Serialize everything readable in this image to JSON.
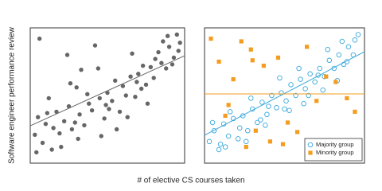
{
  "xlabel": "# of elective CS courses taken",
  "ylabel": "Software engineer performance review",
  "chart_data": [
    {
      "type": "scatter",
      "xlim": [
        0,
        10
      ],
      "ylim": [
        0,
        10
      ],
      "series": [
        {
          "color": "#666666",
          "marker": "dot",
          "x": [
            0.3,
            0.5,
            0.8,
            1.0,
            1.2,
            1.5,
            1.7,
            2.0,
            2.2,
            2.5,
            2.7,
            3.0,
            3.2,
            3.5,
            3.8,
            4.0,
            4.2,
            4.5,
            4.8,
            5.0,
            5.3,
            5.5,
            5.8,
            6.0,
            6.2,
            6.5,
            6.8,
            7.0,
            7.3,
            7.5,
            7.8,
            8.0,
            8.3,
            8.5,
            8.8,
            9.0,
            9.3,
            9.5,
            9.7,
            0.6,
            1.4,
            2.4,
            3.3,
            4.4,
            5.6,
            6.6,
            7.6,
            8.6,
            9.6,
            2.9,
            5.1,
            3.7,
            1.1,
            6.9,
            8.1,
            0.4,
            1.9,
            3.1,
            4.6,
            6.3,
            7.2,
            8.9,
            2.6,
            4.9,
            9.2
          ],
          "y": [
            2.1,
            3.4,
            1.5,
            2.9,
            4.8,
            2.6,
            3.8,
            1.2,
            3.1,
            4.2,
            2.5,
            5.6,
            3.6,
            2.8,
            4.4,
            3.9,
            8.7,
            4.8,
            3.3,
            5.2,
            4.6,
            6.1,
            3.8,
            5.7,
            5.0,
            6.4,
            4.9,
            6.6,
            7.2,
            5.8,
            7.1,
            6.3,
            8.2,
            7.4,
            7.0,
            8.6,
            7.8,
            9.5,
            8.9,
            9.2,
            1.0,
            8.0,
            6.9,
            7.0,
            2.5,
            8.1,
            4.4,
            9.0,
            8.3,
            3.0,
            4.0,
            5.1,
            3.7,
            6.0,
            7.7,
            0.8,
            2.2,
            1.8,
            2.0,
            3.4,
            5.5,
            9.4,
            5.9,
            4.3,
            7.3
          ]
        }
      ],
      "lines": [
        {
          "color": "#666666",
          "x": [
            0,
            10
          ],
          "y": [
            2.76,
            7.94
          ]
        }
      ]
    },
    {
      "type": "scatter",
      "xlim": [
        0,
        10
      ],
      "ylim": [
        0,
        10
      ],
      "legend": "lower right",
      "series": [
        {
          "name": "Majority group",
          "color": "#3aa8dc",
          "marker": "open-circle",
          "x": [
            0.3,
            0.6,
            0.9,
            1.2,
            1.5,
            1.8,
            2.1,
            2.4,
            2.7,
            3.0,
            3.3,
            3.6,
            3.9,
            4.2,
            4.5,
            4.8,
            5.1,
            5.4,
            5.7,
            6.0,
            6.3,
            6.6,
            6.9,
            7.2,
            7.5,
            7.8,
            8.1,
            8.4,
            8.7,
            9.0,
            9.3,
            9.6,
            0.5,
            1.0,
            1.6,
            2.2,
            2.9,
            3.5,
            4.0,
            4.7,
            5.3,
            5.9,
            6.5,
            7.1,
            7.7,
            8.3,
            8.9,
            9.4,
            1.3,
            2.6,
            3.8,
            5.0,
            6.2,
            7.4,
            8.6
          ],
          "y": [
            1.6,
            2.4,
            1.0,
            2.9,
            2.0,
            3.3,
            1.8,
            3.5,
            2.4,
            4.0,
            3.0,
            4.5,
            3.6,
            5.0,
            4.1,
            5.2,
            4.6,
            5.8,
            5.0,
            6.2,
            5.5,
            6.6,
            6.0,
            7.0,
            6.4,
            7.6,
            7.0,
            8.0,
            7.3,
            8.6,
            8.0,
            9.5,
            3.0,
            1.4,
            3.8,
            2.6,
            4.8,
            3.2,
            4.2,
            6.3,
            3.9,
            7.0,
            5.0,
            6.5,
            8.4,
            6.1,
            7.5,
            9.1,
            1.2,
            1.6,
            2.8,
            4.0,
            4.4,
            5.4,
            9.0
          ]
        },
        {
          "name": "Minority group",
          "color": "#f39c1f",
          "marker": "square",
          "x": [
            0.4,
            0.9,
            1.3,
            1.8,
            2.3,
            2.9,
            3.2,
            3.7,
            4.1,
            4.6,
            5.2,
            5.8,
            6.4,
            7.0,
            7.6,
            8.2,
            8.9,
            9.4,
            2.6,
            1.5,
            4.9,
            3.0
          ],
          "y": [
            9.2,
            7.5,
            3.5,
            6.2,
            9.0,
            8.4,
            2.4,
            7.2,
            1.6,
            7.8,
            3.0,
            2.3,
            8.6,
            4.6,
            6.4,
            6.0,
            4.8,
            3.8,
            1.2,
            4.3,
            1.4,
            7.6
          ]
        }
      ],
      "lines": [
        {
          "color": "#3aa8dc",
          "x": [
            0,
            10
          ],
          "y": [
            2.06,
            8.24
          ]
        },
        {
          "color": "#f39c1f",
          "x": [
            0,
            10
          ],
          "y": [
            5.12,
            5.12
          ]
        }
      ]
    }
  ]
}
